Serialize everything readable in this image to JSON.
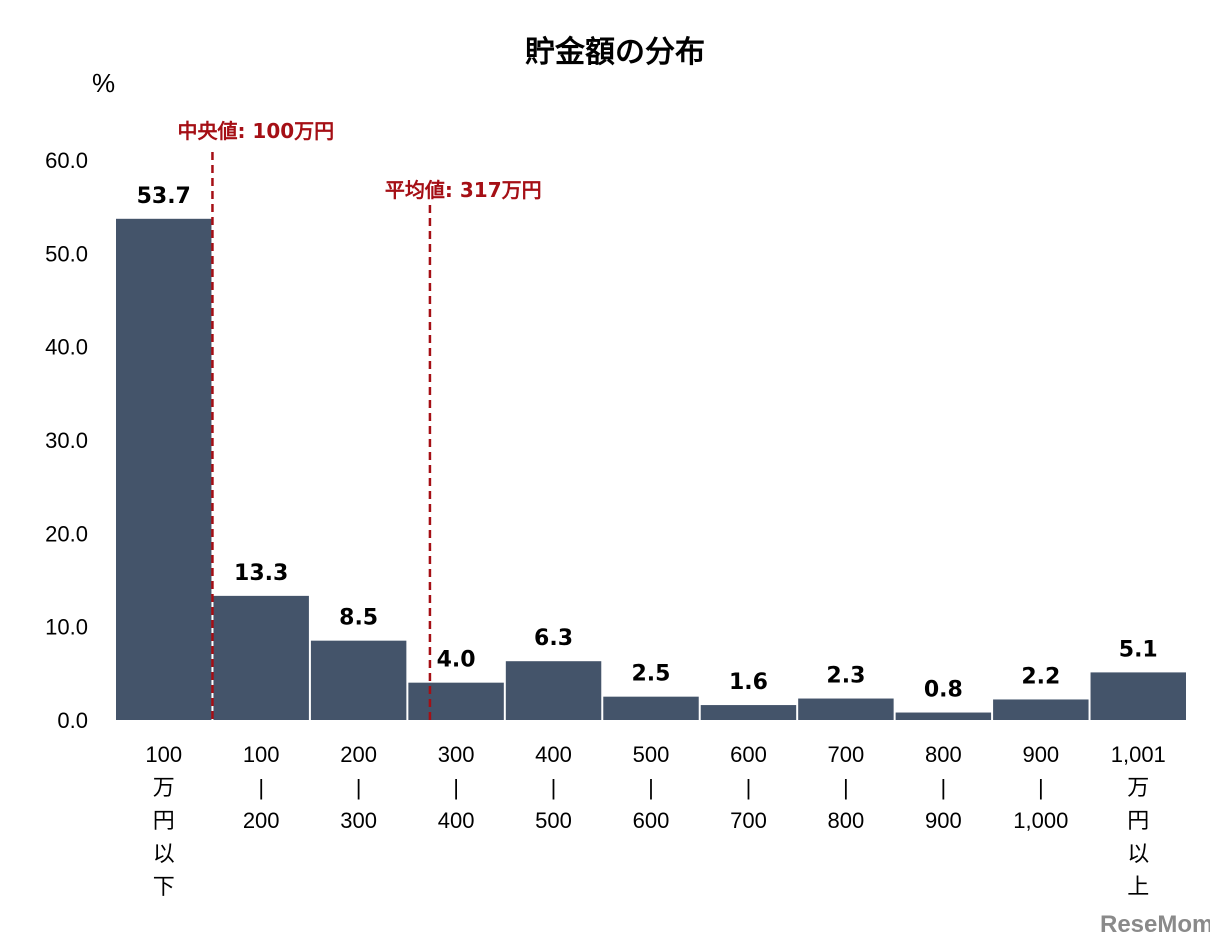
{
  "chart_data": {
    "type": "bar",
    "title": "貯金額の分布",
    "ylabel": "%",
    "xlabel": "",
    "ylim": [
      0,
      60
    ],
    "yticks": [
      "0.0",
      "10.0",
      "20.0",
      "30.0",
      "40.0",
      "50.0",
      "60.0"
    ],
    "grid": false,
    "bar_color": "#44546a",
    "categories": [
      [
        "100",
        "万",
        "円",
        "以",
        "下"
      ],
      [
        "100",
        "|",
        "200"
      ],
      [
        "200",
        "|",
        "300"
      ],
      [
        "300",
        "|",
        "400"
      ],
      [
        "400",
        "|",
        "500"
      ],
      [
        "500",
        "|",
        "600"
      ],
      [
        "600",
        "|",
        "700"
      ],
      [
        "700",
        "|",
        "800"
      ],
      [
        "800",
        "|",
        "900"
      ],
      [
        "900",
        "|",
        "1,000"
      ],
      [
        "1,001",
        "万",
        "円",
        "以",
        "上"
      ]
    ],
    "values": [
      53.7,
      13.3,
      8.5,
      4.0,
      6.3,
      2.5,
      1.6,
      2.3,
      0.8,
      2.2,
      5.1
    ],
    "data_labels": [
      "53.7",
      "13.3",
      "8.5",
      "4.0",
      "6.3",
      "2.5",
      "1.6",
      "2.3",
      "0.8",
      "2.2",
      "5.1"
    ],
    "annotations": [
      {
        "label": "中央値: 100万円",
        "value_man_yen": 100,
        "color": "#a50f15",
        "style": "dashed"
      },
      {
        "label": "平均値: 317万円",
        "value_man_yen": 317,
        "color": "#a50f15",
        "style": "dashed"
      }
    ]
  },
  "watermark": "ReseMom"
}
